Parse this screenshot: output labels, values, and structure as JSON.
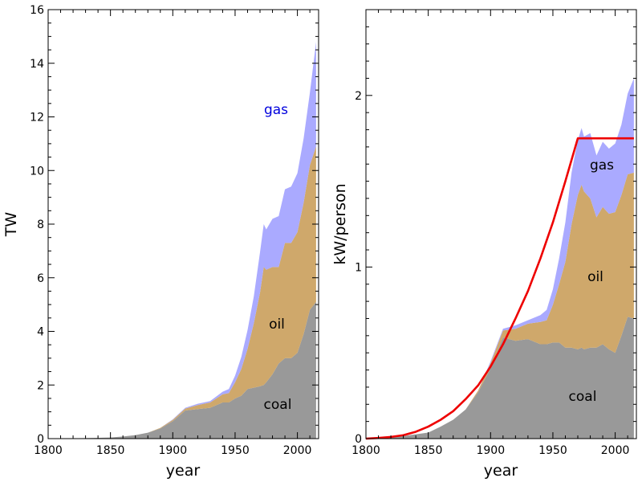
{
  "chart_data": [
    {
      "type": "area",
      "stacked": true,
      "title": "",
      "xlabel": "year",
      "ylabel": "TW",
      "xlim": [
        1800,
        2017
      ],
      "ylim": [
        0,
        16
      ],
      "xticks": [
        "1800",
        "1850",
        "1900",
        "1950",
        "2000"
      ],
      "yticks": [
        "0",
        "2",
        "4",
        "6",
        "8",
        "10",
        "12",
        "14",
        "16"
      ],
      "x": [
        1800,
        1830,
        1850,
        1860,
        1870,
        1880,
        1890,
        1900,
        1910,
        1920,
        1930,
        1940,
        1945,
        1950,
        1955,
        1960,
        1965,
        1970,
        1973,
        1975,
        1980,
        1985,
        1990,
        1995,
        2000,
        2005,
        2010,
        2015
      ],
      "series": [
        {
          "name": "coal",
          "color": "#999999",
          "values": [
            0,
            0.02,
            0.04,
            0.08,
            0.13,
            0.22,
            0.38,
            0.65,
            1.05,
            1.1,
            1.15,
            1.35,
            1.35,
            1.5,
            1.6,
            1.85,
            1.9,
            1.95,
            2.0,
            2.1,
            2.4,
            2.8,
            3.0,
            3.0,
            3.2,
            3.9,
            4.8,
            5.1
          ]
        },
        {
          "name": "oil",
          "color": "#cfa86b",
          "values": [
            0,
            0,
            0,
            0,
            0,
            0,
            0.02,
            0.05,
            0.07,
            0.15,
            0.2,
            0.3,
            0.35,
            0.6,
            1.0,
            1.5,
            2.4,
            3.5,
            4.4,
            4.2,
            4.0,
            3.6,
            4.3,
            4.3,
            4.5,
            4.9,
            5.4,
            5.8
          ]
        },
        {
          "name": "gas",
          "color": "#aaaaff",
          "values": [
            0,
            0,
            0,
            0,
            0,
            0,
            0,
            0.02,
            0.03,
            0.05,
            0.05,
            0.1,
            0.15,
            0.25,
            0.45,
            0.7,
            1.0,
            1.5,
            1.6,
            1.5,
            1.8,
            1.9,
            2.0,
            2.1,
            2.2,
            2.4,
            2.7,
            3.9
          ]
        }
      ],
      "labels": {
        "gas": "gas",
        "oil": "oil",
        "coal": "coal"
      }
    },
    {
      "type": "area",
      "stacked": true,
      "title": "",
      "xlabel": "year",
      "ylabel": "kW/person",
      "xlim": [
        1800,
        2017
      ],
      "ylim": [
        0,
        2.5
      ],
      "xticks": [
        "1800",
        "1850",
        "1900",
        "1950",
        "2000"
      ],
      "yticks": [
        "0",
        "1",
        "2"
      ],
      "x": [
        1800,
        1830,
        1850,
        1860,
        1870,
        1880,
        1890,
        1900,
        1910,
        1920,
        1930,
        1940,
        1945,
        1950,
        1955,
        1960,
        1965,
        1970,
        1973,
        1975,
        1980,
        1985,
        1990,
        1995,
        2000,
        2005,
        2010,
        2015
      ],
      "series": [
        {
          "name": "coal",
          "color": "#999999",
          "values": [
            0,
            0.015,
            0.035,
            0.07,
            0.11,
            0.17,
            0.27,
            0.41,
            0.59,
            0.57,
            0.58,
            0.55,
            0.55,
            0.56,
            0.56,
            0.53,
            0.53,
            0.52,
            0.53,
            0.52,
            0.53,
            0.53,
            0.55,
            0.52,
            0.5,
            0.6,
            0.71,
            0.7
          ]
        },
        {
          "name": "oil",
          "color": "#cfa86b",
          "values": [
            0,
            0,
            0,
            0,
            0,
            0,
            0.01,
            0.03,
            0.04,
            0.07,
            0.09,
            0.13,
            0.14,
            0.22,
            0.34,
            0.5,
            0.72,
            0.9,
            0.95,
            0.92,
            0.87,
            0.76,
            0.8,
            0.79,
            0.82,
            0.82,
            0.83,
            0.85
          ]
        },
        {
          "name": "gas",
          "color": "#aaaaff",
          "values": [
            0,
            0,
            0,
            0,
            0,
            0,
            0,
            0.01,
            0.01,
            0.02,
            0.02,
            0.04,
            0.06,
            0.09,
            0.15,
            0.23,
            0.3,
            0.32,
            0.33,
            0.32,
            0.38,
            0.36,
            0.38,
            0.38,
            0.4,
            0.41,
            0.47,
            0.55
          ]
        }
      ],
      "curve": {
        "color": "#ee0000",
        "x": [
          1800,
          1810,
          1820,
          1830,
          1840,
          1850,
          1860,
          1870,
          1880,
          1890,
          1900,
          1910,
          1920,
          1930,
          1940,
          1950,
          1960,
          1970,
          1980,
          1990,
          2000,
          2010,
          2015
        ],
        "values": [
          0,
          0.004,
          0.01,
          0.02,
          0.04,
          0.07,
          0.11,
          0.16,
          0.23,
          0.31,
          0.42,
          0.55,
          0.7,
          0.86,
          1.05,
          1.26,
          1.5,
          1.75,
          1.75,
          1.75,
          1.75,
          1.75,
          1.75
        ]
      },
      "labels": {
        "gas": "gas",
        "oil": "oil",
        "coal": "coal"
      }
    }
  ]
}
